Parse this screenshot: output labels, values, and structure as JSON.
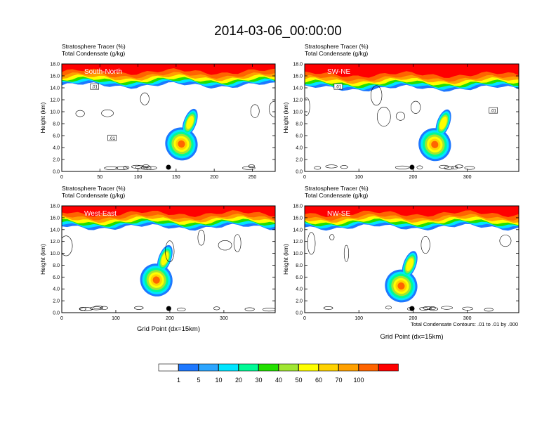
{
  "figure": {
    "title": "2014-03-06_00:00:00",
    "contour_note": "Total Condensate Contours: .01 to .01 by .000"
  },
  "colorbar": {
    "labels": [
      "1",
      "5",
      "10",
      "20",
      "30",
      "40",
      "50",
      "60",
      "70",
      "100"
    ],
    "colors": [
      "#ffffff",
      "#1e78ff",
      "#2ca5ff",
      "#00e5ff",
      "#00fa96",
      "#22e000",
      "#a0e632",
      "#ffff00",
      "#ffd200",
      "#ffa000",
      "#ff6400",
      "#ff0000"
    ]
  },
  "chart_data": [
    {
      "type": "heatmap",
      "panel_label": "South-North",
      "title_lines": [
        "Stratosphere Tracer   (%)",
        "Total Condensate   (g/kg)"
      ],
      "ylabel": "Height (km)",
      "xlabel": "",
      "xlim": [
        0,
        280
      ],
      "ylim": [
        0,
        18
      ],
      "xticks": [
        0,
        50,
        100,
        150,
        200,
        250
      ],
      "yticks": [
        "0.0",
        "2.0",
        "4.0",
        "6.0",
        "8.0",
        "10.0",
        "12.0",
        "14.0",
        "16.0",
        "18.0"
      ],
      "contour_labels": [
        {
          "text": ".01",
          "x": 43,
          "y": 14.1
        },
        {
          "text": ".01",
          "x": 66,
          "y": 5.5
        }
      ],
      "tropopause_km": 15.5,
      "plume_core": {
        "x": 157,
        "y": 4.6
      },
      "marker_x": 140
    },
    {
      "type": "heatmap",
      "panel_label": "SW-NE",
      "title_lines": [
        "Stratosphere Tracer   (%)",
        "Total Condensate   (g/kg)"
      ],
      "ylabel": "Height (km)",
      "xlabel": "",
      "xlim": [
        0,
        395
      ],
      "ylim": [
        0,
        18
      ],
      "xticks": [
        0,
        100,
        200,
        300
      ],
      "yticks": [
        "0.0",
        "2.0",
        "4.0",
        "6.0",
        "8.0",
        "10.0",
        "12.0",
        "14.0",
        "16.0",
        "18.0"
      ],
      "contour_labels": [
        {
          "text": ".01",
          "x": 62,
          "y": 14.1
        },
        {
          "text": ".01",
          "x": 348,
          "y": 10.1
        }
      ],
      "tropopause_km": 15.0,
      "plume_core": {
        "x": 240,
        "y": 4.5
      },
      "marker_x": 198
    },
    {
      "type": "heatmap",
      "panel_label": "West-East",
      "title_lines": [
        "Stratosphere Tracer   (%)",
        "Total Condensate   (g/kg)"
      ],
      "ylabel": "Height (km)",
      "xlabel": "Grid Point (dx=15km)",
      "xlim": [
        0,
        395
      ],
      "ylim": [
        0,
        18
      ],
      "xticks": [
        0,
        100,
        200,
        300
      ],
      "yticks": [
        "0.0",
        "2.0",
        "4.0",
        "6.0",
        "8.0",
        "10.0",
        "12.0",
        "14.0",
        "16.0",
        "18.0"
      ],
      "contour_labels": [],
      "tropopause_km": 15.5,
      "plume_core": {
        "x": 175,
        "y": 5.5
      },
      "marker_x": 198
    },
    {
      "type": "heatmap",
      "panel_label": "NW-SE",
      "title_lines": [
        "Stratosphere Tracer   (%)",
        "Total Condensate   (g/kg)"
      ],
      "ylabel": "Height (km)",
      "xlabel": "Grid Point (dx=15km)",
      "xlim": [
        0,
        395
      ],
      "ylim": [
        0,
        18
      ],
      "xticks": [
        0,
        100,
        200,
        300
      ],
      "yticks": [
        "0.0",
        "2.0",
        "4.0",
        "6.0",
        "8.0",
        "10.0",
        "12.0",
        "14.0",
        "16.0",
        "18.0"
      ],
      "contour_labels": [],
      "tropopause_km": 15.5,
      "plume_core": {
        "x": 178,
        "y": 4.5
      },
      "marker_x": 198
    }
  ]
}
